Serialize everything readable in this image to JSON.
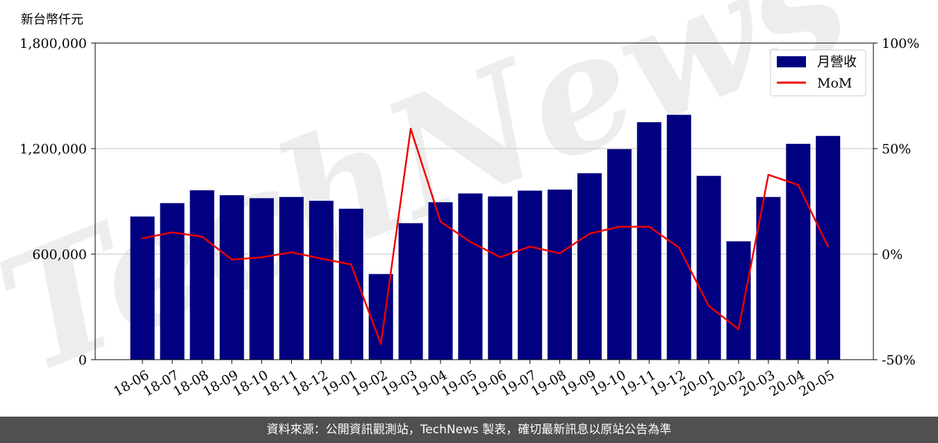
{
  "watermark": "TechNews",
  "footer": {
    "source_text": "資料來源：公開資訊觀測站，TechNews 製表，確切最新訊息以原站公告為準"
  },
  "chart_data": {
    "type": "bar",
    "unit_label": "新台幣仟元",
    "categories": [
      "18-06",
      "18-07",
      "18-08",
      "18-09",
      "18-10",
      "18-11",
      "18-12",
      "19-01",
      "19-02",
      "19-03",
      "19-04",
      "19-05",
      "19-06",
      "19-07",
      "19-08",
      "19-09",
      "19-10",
      "19-11",
      "19-12",
      "20-01",
      "20-02",
      "20-03",
      "20-04",
      "20-05"
    ],
    "series": [
      {
        "name": "月營收",
        "kind": "bar",
        "axis": "left",
        "color": "#000080",
        "values": [
          814000,
          890000,
          963000,
          935000,
          918000,
          925000,
          903000,
          858000,
          487000,
          776000,
          895000,
          945000,
          928000,
          961000,
          967000,
          1060000,
          1197000,
          1350000,
          1392000,
          1045000,
          673000,
          925000,
          1227000,
          1272000
        ]
      },
      {
        "name": "MoM",
        "kind": "line",
        "axis": "right",
        "color": "#ee0000",
        "values": [
          7.5,
          10.3,
          8.3,
          -2.6,
          -1.5,
          0.9,
          -2.1,
          -4.9,
          -42.6,
          59.4,
          15.4,
          5.8,
          -1.4,
          3.6,
          0.4,
          9.7,
          13.0,
          13.0,
          3.1,
          -24.5,
          -35.6,
          37.6,
          32.8,
          3.6
        ]
      }
    ],
    "y_left": {
      "min": 0,
      "max": 1800000,
      "ticks": [
        0,
        600000,
        1200000,
        1800000
      ],
      "tick_labels": [
        "0",
        "600,000",
        "1,200,000",
        "1,800,000"
      ]
    },
    "y_right": {
      "min": -50,
      "max": 100,
      "ticks": [
        -50,
        0,
        50,
        100
      ],
      "tick_labels": [
        "-50%",
        "0%",
        "50%",
        "100%"
      ]
    },
    "grid": "horizontal",
    "legend": "top-right"
  }
}
